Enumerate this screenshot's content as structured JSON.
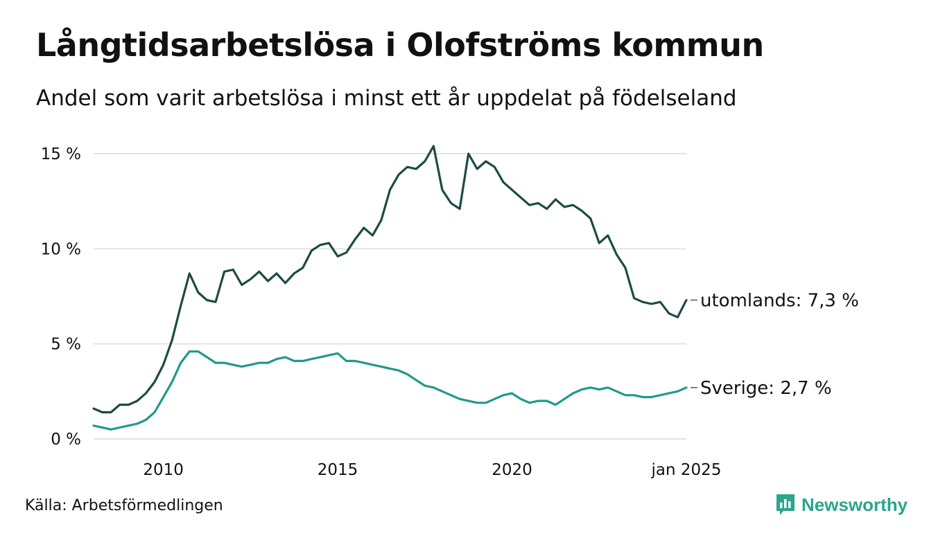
{
  "header": {
    "title": "Långtidsarbetslösa i Olofströms kommun",
    "subtitle": "Andel som varit arbetslösa i minst ett år uppdelat på födelseland"
  },
  "footer": {
    "source": "Källa: Arbetsförmedlingen",
    "brand": "Newsworthy",
    "brand_icon": "bar-chart-speech-bubble-icon"
  },
  "colors": {
    "accent": "#2aa58e",
    "dark_series": "#1e4a43",
    "light_series": "#1f9a8a",
    "grid": "#e3e3e3",
    "text": "#111111"
  },
  "chart_data": {
    "type": "line",
    "title": "Långtidsarbetslösa i Olofströms kommun",
    "subtitle": "Andel som varit arbetslösa i minst ett år uppdelat på födelseland",
    "xlabel": "",
    "ylabel": "",
    "x_ticks": [
      "2010",
      "2015",
      "2020",
      "jan 2025"
    ],
    "y_ticks": [
      "0 %",
      "5 %",
      "10 %",
      "15 %"
    ],
    "ylim": [
      0,
      15.5
    ],
    "xlim": [
      "2008-01",
      "2025-01"
    ],
    "grid": true,
    "legend": "end-of-line labels",
    "series": [
      {
        "name": "utomlands",
        "end_label": "utomlands: 7,3 %",
        "color": "#1e4a43",
        "points": [
          [
            "2008-01",
            1.6
          ],
          [
            "2008-04",
            1.4
          ],
          [
            "2008-07",
            1.4
          ],
          [
            "2008-10",
            1.8
          ],
          [
            "2009-01",
            1.8
          ],
          [
            "2009-04",
            2.0
          ],
          [
            "2009-07",
            2.4
          ],
          [
            "2009-10",
            3.0
          ],
          [
            "2010-01",
            3.9
          ],
          [
            "2010-04",
            5.2
          ],
          [
            "2010-07",
            7.0
          ],
          [
            "2010-10",
            8.7
          ],
          [
            "2011-01",
            7.7
          ],
          [
            "2011-04",
            7.3
          ],
          [
            "2011-07",
            7.2
          ],
          [
            "2011-10",
            8.8
          ],
          [
            "2012-01",
            8.9
          ],
          [
            "2012-04",
            8.1
          ],
          [
            "2012-07",
            8.4
          ],
          [
            "2012-10",
            8.8
          ],
          [
            "2013-01",
            8.3
          ],
          [
            "2013-04",
            8.7
          ],
          [
            "2013-07",
            8.2
          ],
          [
            "2013-10",
            8.7
          ],
          [
            "2014-01",
            9.0
          ],
          [
            "2014-04",
            9.9
          ],
          [
            "2014-07",
            10.2
          ],
          [
            "2014-10",
            10.3
          ],
          [
            "2015-01",
            9.6
          ],
          [
            "2015-04",
            9.8
          ],
          [
            "2015-07",
            10.5
          ],
          [
            "2015-10",
            11.1
          ],
          [
            "2016-01",
            10.7
          ],
          [
            "2016-04",
            11.5
          ],
          [
            "2016-07",
            13.1
          ],
          [
            "2016-10",
            13.9
          ],
          [
            "2017-01",
            14.3
          ],
          [
            "2017-04",
            14.2
          ],
          [
            "2017-07",
            14.6
          ],
          [
            "2017-10",
            15.4
          ],
          [
            "2018-01",
            13.1
          ],
          [
            "2018-04",
            12.4
          ],
          [
            "2018-07",
            12.1
          ],
          [
            "2018-10",
            15.0
          ],
          [
            "2019-01",
            14.2
          ],
          [
            "2019-04",
            14.6
          ],
          [
            "2019-07",
            14.3
          ],
          [
            "2019-10",
            13.5
          ],
          [
            "2020-01",
            13.1
          ],
          [
            "2020-04",
            12.7
          ],
          [
            "2020-07",
            12.3
          ],
          [
            "2020-10",
            12.4
          ],
          [
            "2021-01",
            12.1
          ],
          [
            "2021-04",
            12.6
          ],
          [
            "2021-07",
            12.2
          ],
          [
            "2021-10",
            12.3
          ],
          [
            "2022-01",
            12.0
          ],
          [
            "2022-04",
            11.6
          ],
          [
            "2022-07",
            10.3
          ],
          [
            "2022-10",
            10.7
          ],
          [
            "2023-01",
            9.7
          ],
          [
            "2023-04",
            9.0
          ],
          [
            "2023-07",
            7.4
          ],
          [
            "2023-10",
            7.2
          ],
          [
            "2024-01",
            7.1
          ],
          [
            "2024-04",
            7.2
          ],
          [
            "2024-07",
            6.6
          ],
          [
            "2024-10",
            6.4
          ],
          [
            "2025-01",
            7.3
          ]
        ]
      },
      {
        "name": "Sverige",
        "end_label": "Sverige: 2,7 %",
        "color": "#1f9a8a",
        "points": [
          [
            "2008-01",
            0.7
          ],
          [
            "2008-04",
            0.6
          ],
          [
            "2008-07",
            0.5
          ],
          [
            "2008-10",
            0.6
          ],
          [
            "2009-01",
            0.7
          ],
          [
            "2009-04",
            0.8
          ],
          [
            "2009-07",
            1.0
          ],
          [
            "2009-10",
            1.4
          ],
          [
            "2010-01",
            2.2
          ],
          [
            "2010-04",
            3.0
          ],
          [
            "2010-07",
            4.0
          ],
          [
            "2010-10",
            4.6
          ],
          [
            "2011-01",
            4.6
          ],
          [
            "2011-04",
            4.3
          ],
          [
            "2011-07",
            4.0
          ],
          [
            "2011-10",
            4.0
          ],
          [
            "2012-01",
            3.9
          ],
          [
            "2012-04",
            3.8
          ],
          [
            "2012-07",
            3.9
          ],
          [
            "2012-10",
            4.0
          ],
          [
            "2013-01",
            4.0
          ],
          [
            "2013-04",
            4.2
          ],
          [
            "2013-07",
            4.3
          ],
          [
            "2013-10",
            4.1
          ],
          [
            "2014-01",
            4.1
          ],
          [
            "2014-04",
            4.2
          ],
          [
            "2014-07",
            4.3
          ],
          [
            "2014-10",
            4.4
          ],
          [
            "2015-01",
            4.5
          ],
          [
            "2015-04",
            4.1
          ],
          [
            "2015-07",
            4.1
          ],
          [
            "2015-10",
            4.0
          ],
          [
            "2016-01",
            3.9
          ],
          [
            "2016-04",
            3.8
          ],
          [
            "2016-07",
            3.7
          ],
          [
            "2016-10",
            3.6
          ],
          [
            "2017-01",
            3.4
          ],
          [
            "2017-04",
            3.1
          ],
          [
            "2017-07",
            2.8
          ],
          [
            "2017-10",
            2.7
          ],
          [
            "2018-01",
            2.5
          ],
          [
            "2018-04",
            2.3
          ],
          [
            "2018-07",
            2.1
          ],
          [
            "2018-10",
            2.0
          ],
          [
            "2019-01",
            1.9
          ],
          [
            "2019-04",
            1.9
          ],
          [
            "2019-07",
            2.1
          ],
          [
            "2019-10",
            2.3
          ],
          [
            "2020-01",
            2.4
          ],
          [
            "2020-04",
            2.1
          ],
          [
            "2020-07",
            1.9
          ],
          [
            "2020-10",
            2.0
          ],
          [
            "2021-01",
            2.0
          ],
          [
            "2021-04",
            1.8
          ],
          [
            "2021-07",
            2.1
          ],
          [
            "2021-10",
            2.4
          ],
          [
            "2022-01",
            2.6
          ],
          [
            "2022-04",
            2.7
          ],
          [
            "2022-07",
            2.6
          ],
          [
            "2022-10",
            2.7
          ],
          [
            "2023-01",
            2.5
          ],
          [
            "2023-04",
            2.3
          ],
          [
            "2023-07",
            2.3
          ],
          [
            "2023-10",
            2.2
          ],
          [
            "2024-01",
            2.2
          ],
          [
            "2024-04",
            2.3
          ],
          [
            "2024-07",
            2.4
          ],
          [
            "2024-10",
            2.5
          ],
          [
            "2025-01",
            2.7
          ]
        ]
      }
    ]
  }
}
